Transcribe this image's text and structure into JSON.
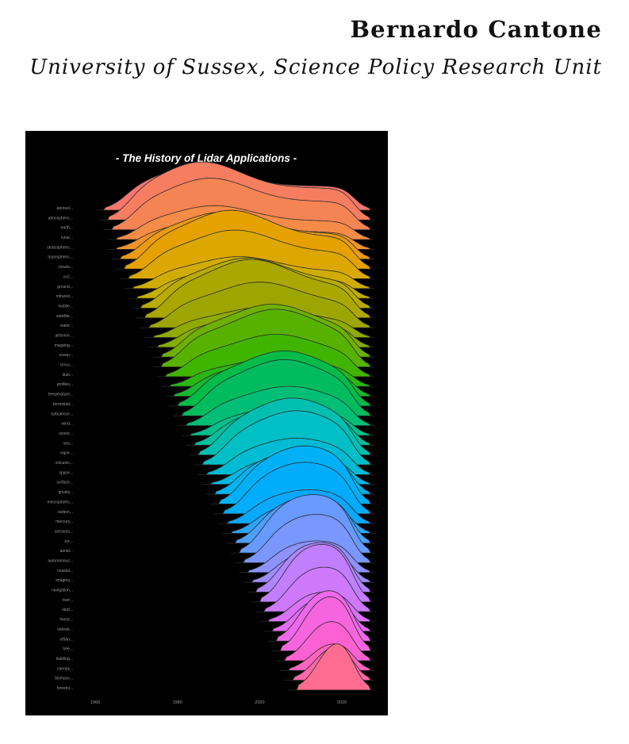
{
  "header": {
    "author": "Bernardo Cantone",
    "affiliation": "University of Sussex, Science Policy Research Unit"
  },
  "chart_data": {
    "type": "ridgeline",
    "title": "- The History of Lidar Applications -",
    "background": "#000000",
    "xlim": [
      1960,
      2025
    ],
    "x_ticks": [
      1960,
      1980,
      2000,
      2020
    ],
    "categories": [
      "aerosol",
      "atmospheric",
      "earth",
      "lunar",
      "stratospheric",
      "tropospheric",
      "clouds",
      "co2",
      "ground",
      "infrared",
      "mobile",
      "satellite",
      "water",
      "airborne",
      "mapping",
      "ocean",
      "cirrus",
      "dust",
      "profiles",
      "temperature",
      "terrestrial",
      "turbulence",
      "wind",
      "ozone",
      "sea",
      "vapor",
      "volcanic",
      "space",
      "surface",
      "gravity",
      "mesospheric",
      "carbon",
      "mercury",
      "aerosols",
      "ice",
      "aerial",
      "autonomous",
      "coastal",
      "imagery",
      "navigation",
      "river",
      "land",
      "forest",
      "vehicle",
      "urban",
      "tree",
      "building",
      "canopy",
      "biomass",
      "forestry"
    ],
    "category_label_suffix": "...",
    "peaks": [
      1985,
      1986,
      1988,
      1989,
      1990,
      1991,
      1993,
      1994,
      1995,
      1996,
      1997,
      1998,
      2000,
      2001,
      2002,
      2003,
      2004,
      2004,
      2005,
      2005,
      2006,
      2006,
      2007,
      2007,
      2008,
      2008,
      2009,
      2009,
      2010,
      2010,
      2011,
      2011,
      2012,
      2012,
      2013,
      2013,
      2014,
      2014,
      2015,
      2015,
      2015,
      2016,
      2016,
      2016,
      2017,
      2017,
      2017,
      2018,
      2018,
      2018
    ],
    "starts": [
      1962,
      1963,
      1964,
      1965,
      1965,
      1966,
      1967,
      1968,
      1969,
      1970,
      1971,
      1972,
      1973,
      1974,
      1975,
      1976,
      1976,
      1977,
      1978,
      1979,
      1980,
      1981,
      1982,
      1983,
      1984,
      1985,
      1986,
      1987,
      1988,
      1989,
      1990,
      1991,
      1992,
      1993,
      1994,
      1995,
      1996,
      1997,
      1998,
      1999,
      2000,
      2001,
      2002,
      2003,
      2004,
      2005,
      2006,
      2007,
      2008,
      2009
    ],
    "end": 2024,
    "grid": false,
    "legend": "none",
    "palette": [
      "#f8766d",
      "#f48a4a",
      "#e8a000",
      "#c9b000",
      "#a3a500",
      "#7cae00",
      "#39b600",
      "#00bb4e",
      "#00c08b",
      "#00bfc4",
      "#00b4f0",
      "#00a9ff",
      "#619cff",
      "#9590ff",
      "#c77cff",
      "#e76bf3",
      "#fd61d1",
      "#ff6c91"
    ]
  }
}
